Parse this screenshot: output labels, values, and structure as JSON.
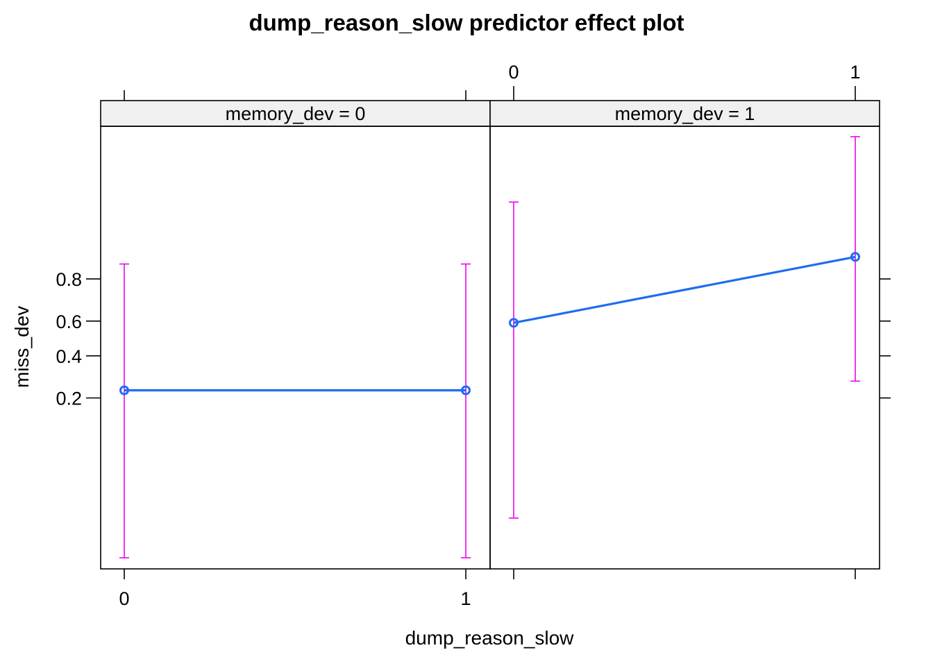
{
  "chart_data": {
    "type": "line",
    "title": "dump_reason_slow predictor effect plot",
    "xlabel": "dump_reason_slow",
    "ylabel": "miss_dev",
    "x_ticks": [
      "0",
      "1"
    ],
    "y_ticks": [
      "0.2",
      "0.4",
      "0.6",
      "0.8"
    ],
    "panels": [
      {
        "strip": "memory_dev = 0",
        "x": [
          0,
          1
        ],
        "fit": [
          0.23,
          0.23
        ],
        "lower": [
          0.006,
          0.006
        ],
        "upper": [
          0.85,
          0.85
        ]
      },
      {
        "strip": "memory_dev = 1",
        "x": [
          0,
          1
        ],
        "fit": [
          0.59,
          0.87
        ],
        "lower": [
          0.015,
          0.27
        ],
        "upper": [
          0.96,
          0.991
        ]
      }
    ],
    "colors": {
      "fit": "#1f6cf2",
      "ci": "#ee00ee",
      "strip_bg": "#f0f0f0"
    }
  }
}
